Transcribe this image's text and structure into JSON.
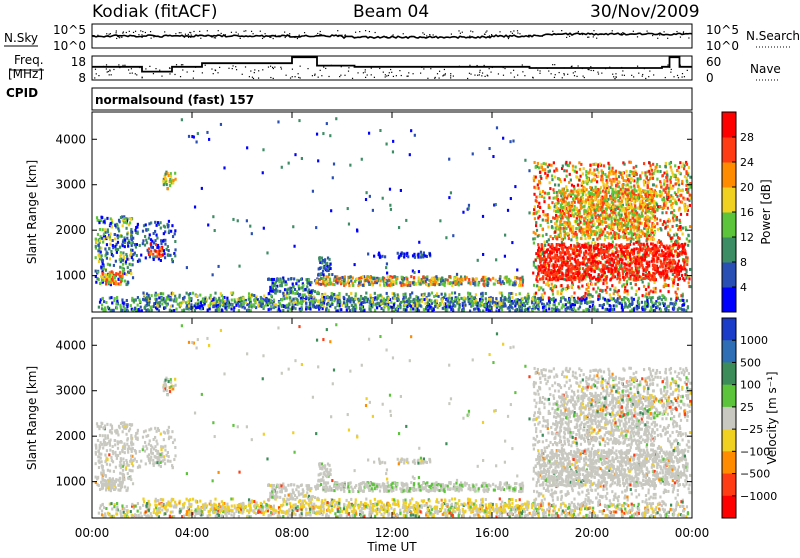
{
  "header": {
    "station": "Kodiak (fitACF)",
    "beam": "Beam 04",
    "date": "30/Nov/2009"
  },
  "noise_panel": {
    "left_label": "N.Sky",
    "left_ticks": [
      "10^5",
      "10^0"
    ],
    "right_label": "N.Search",
    "right_ticks": [
      "10^5",
      "10^0"
    ]
  },
  "freq_panel": {
    "left_label_1": "Freq.",
    "left_label_2": "[MHz]",
    "left_ticks": [
      "18",
      "8"
    ],
    "right_label": "Nave",
    "right_ticks": [
      "60",
      "0"
    ],
    "cpid_label": "CPID",
    "program": "normalsound (fast) 157"
  },
  "chart_data": [
    {
      "type": "heatmap",
      "name": "power",
      "ylabel": "Slant Range [km]",
      "yticks": [
        "1000",
        "2000",
        "3000",
        "4000"
      ],
      "ylim": [
        200,
        4600
      ],
      "xlim": [
        0,
        24
      ],
      "colorbar": {
        "label": "Power [dB]",
        "ticks": [
          "4",
          "8",
          "12",
          "16",
          "20",
          "24",
          "28"
        ],
        "colors": [
          "#0000ff",
          "#2a4fb4",
          "#3c8c64",
          "#5cc43a",
          "#f0d020",
          "#ff8c00",
          "#ff3c14",
          "#ff0000"
        ]
      }
    },
    {
      "type": "heatmap",
      "name": "velocity",
      "ylabel": "Slant Range [km]",
      "yticks": [
        "1000",
        "2000",
        "3000",
        "4000"
      ],
      "ylim": [
        200,
        4600
      ],
      "xlim": [
        0,
        24
      ],
      "xlabel": "Time UT",
      "xticks": [
        "00:00",
        "04:00",
        "08:00",
        "12:00",
        "16:00",
        "20:00",
        "00:00"
      ],
      "colorbar": {
        "label": "Velocity [m s⁻¹]",
        "ticks": [
          "1000",
          "500",
          "100",
          "25",
          "−25",
          "−100",
          "−500",
          "−1000"
        ],
        "colors": [
          "#1a3cc8",
          "#2e6eb4",
          "#3c8c5a",
          "#5cc43a",
          "#c8c8c0",
          "#f0d020",
          "#ff8c00",
          "#ff3c14",
          "#ff0000"
        ]
      }
    }
  ]
}
